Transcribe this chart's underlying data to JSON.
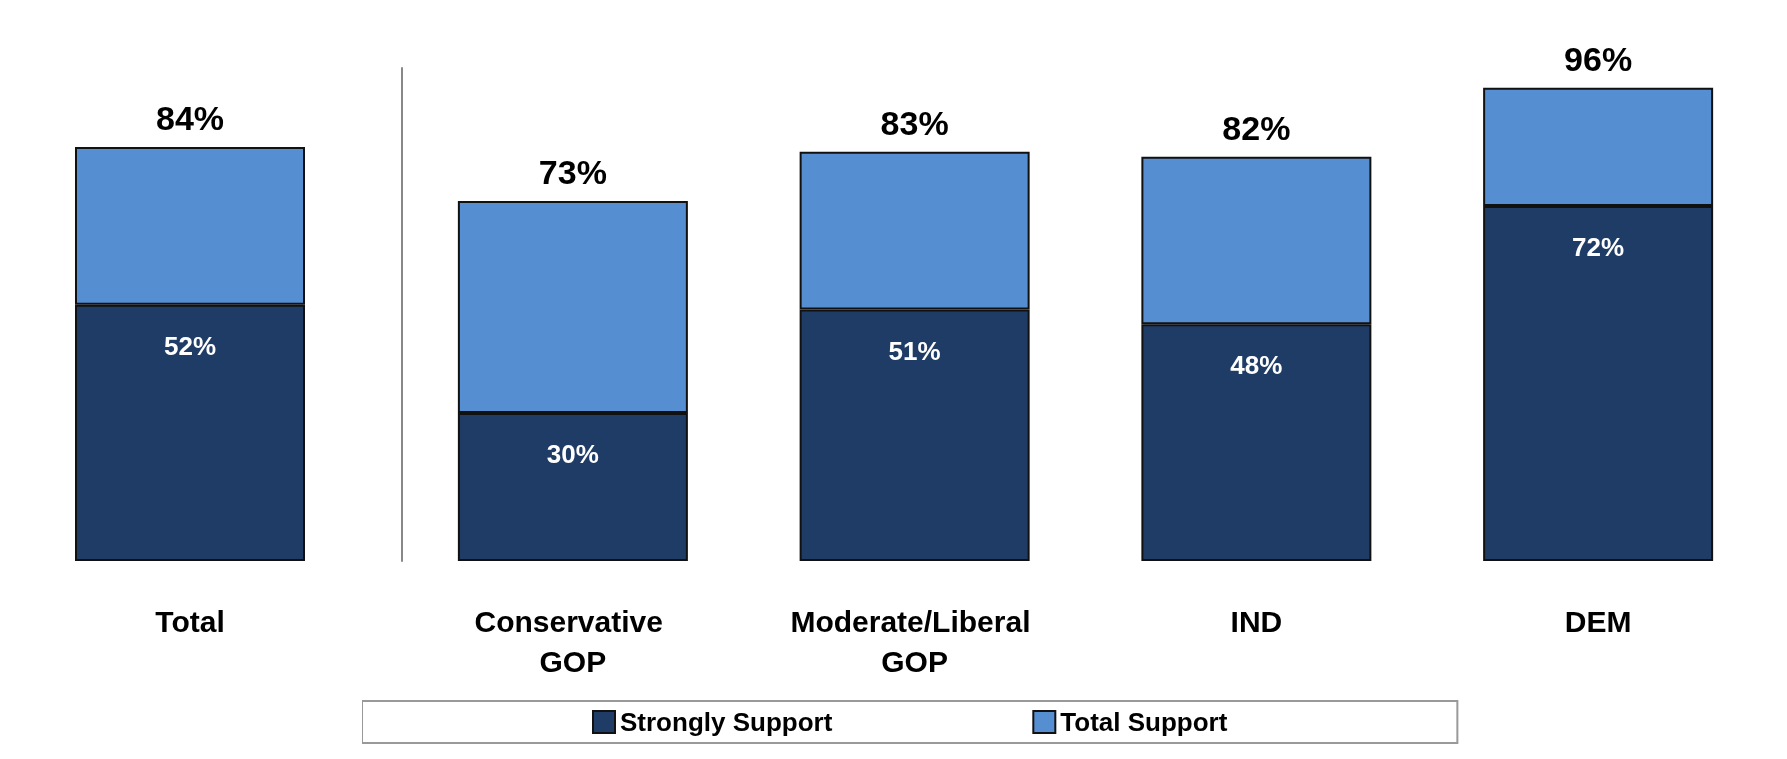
{
  "chart_data": [
    {
      "type": "bar",
      "stacked": true,
      "categories": [
        "Total"
      ],
      "tick_labels": "x",
      "series": [
        {
          "color": "#1f3c66",
          "values": [
            52
          ],
          "value_labels": [
            "52%"
          ]
        },
        {
          "color": "#568ed2",
          "values": [
            32
          ]
        }
      ],
      "totals": [
        "84%"
      ]
    },
    {
      "type": "bar",
      "stacked": true,
      "categories": [
        "Conservative GOP",
        "Moderate/Liberal GOP",
        "IND",
        "DEM"
      ],
      "tick_labels": "x",
      "series": [
        {
          "name": "Strongly Support",
          "color": "#1f3c66",
          "values": [
            30,
            51,
            48,
            72
          ],
          "value_labels": [
            "30%",
            "51%",
            "48%",
            "72%"
          ]
        },
        {
          "name": "Total Support",
          "color": "#568ed2",
          "values": [
            43,
            32,
            34,
            24
          ]
        }
      ],
      "totals": [
        "73%",
        "83%",
        "82%",
        "96%"
      ],
      "legend": "bottom"
    }
  ]
}
